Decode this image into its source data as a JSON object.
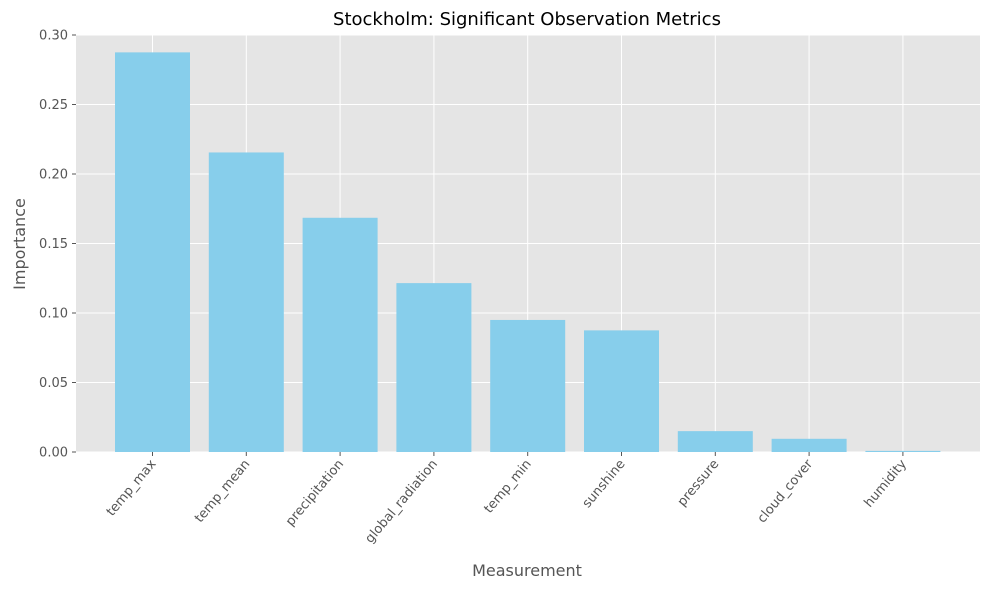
{
  "chart_data": {
    "type": "bar",
    "title": "Stockholm: Significant Observation Metrics",
    "xlabel": "Measurement",
    "ylabel": "Importance",
    "categories": [
      "temp_max",
      "temp_mean",
      "precipitation",
      "global_radiation",
      "temp_min",
      "sunshine",
      "pressure",
      "cloud_cover",
      "humidity"
    ],
    "values": [
      0.2875,
      0.2155,
      0.1685,
      0.1215,
      0.095,
      0.0875,
      0.015,
      0.0095,
      0.0008
    ],
    "ylim": [
      0,
      0.3
    ],
    "yticks": [
      "0.00",
      "0.05",
      "0.10",
      "0.15",
      "0.20",
      "0.25",
      "0.30"
    ],
    "grid": true,
    "colors": {
      "bar": "#87CEEB",
      "plot_background": "#E5E5E5",
      "grid": "#FFFFFF"
    }
  }
}
